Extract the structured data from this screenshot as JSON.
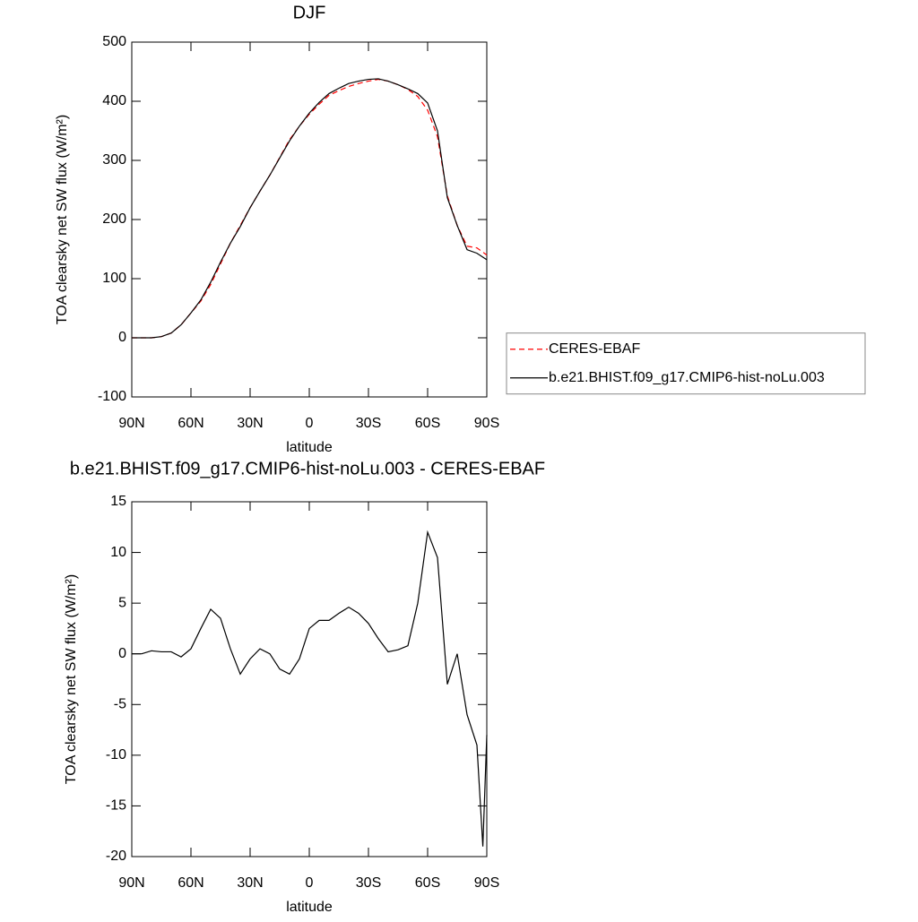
{
  "chart_data": [
    {
      "type": "line",
      "title": "DJF",
      "xlabel": "latitude",
      "ylabel": "TOA clearsky net SW flux (W/m²)",
      "x": [
        90,
        85,
        80,
        75,
        70,
        65,
        60,
        55,
        50,
        45,
        40,
        35,
        30,
        25,
        20,
        15,
        10,
        5,
        0,
        -5,
        -10,
        -15,
        -20,
        -25,
        -30,
        -35,
        -40,
        -45,
        -50,
        -55,
        -60,
        -65,
        -70,
        -75,
        -80,
        -85,
        -90
      ],
      "series": [
        {
          "name": "CERES-EBAF",
          "color": "#ff0000",
          "dashed": true,
          "values": [
            0,
            0,
            0,
            2,
            8,
            22,
            42,
            62,
            90,
            125,
            160,
            190,
            220,
            248,
            275,
            305,
            335,
            358,
            378,
            395,
            410,
            418,
            425,
            430,
            434,
            437,
            434,
            428,
            420,
            408,
            385,
            340,
            240,
            190,
            155,
            152,
            140
          ]
        },
        {
          "name": "b.e21.BHIST.f09_g17.CMIP6-hist-noLu.003",
          "color": "#000000",
          "dashed": false,
          "values": [
            0,
            0,
            0,
            2,
            8,
            22,
            42,
            64,
            94,
            128,
            160,
            188,
            220,
            248,
            275,
            304,
            333,
            358,
            380,
            398,
            413,
            422,
            430,
            434,
            437,
            438,
            434,
            428,
            421,
            413,
            397,
            350,
            237,
            190,
            149,
            143,
            132
          ]
        }
      ],
      "xlim": [
        90,
        -90
      ],
      "xticks": [
        {
          "value": 90,
          "label": "90N"
        },
        {
          "value": 60,
          "label": "60N"
        },
        {
          "value": 30,
          "label": "30N"
        },
        0,
        {
          "value": -30,
          "label": "30S"
        },
        {
          "value": -60,
          "label": "60S"
        },
        {
          "value": -90,
          "label": "90S"
        }
      ],
      "ylim": [
        -100,
        500
      ],
      "yticks": [
        -100,
        0,
        100,
        200,
        300,
        400,
        500
      ],
      "legend": "right"
    },
    {
      "type": "line",
      "title": "b.e21.BHIST.f09_g17.CMIP6-hist-noLu.003 - CERES-EBAF",
      "xlabel": "latitude",
      "ylabel": "TOA clearsky net SW flux (W/m²)",
      "x": [
        90,
        85,
        80,
        75,
        70,
        65,
        60,
        55,
        50,
        45,
        40,
        35,
        30,
        25,
        20,
        15,
        10,
        5,
        0,
        -5,
        -10,
        -15,
        -20,
        -25,
        -30,
        -35,
        -40,
        -45,
        -50,
        -55,
        -60,
        -65,
        -70,
        -75,
        -80,
        -85,
        -88,
        -90
      ],
      "values": [
        0,
        0,
        0.3,
        0.2,
        0.2,
        -0.3,
        0.5,
        2.5,
        4.4,
        3.5,
        0.5,
        -2,
        -0.5,
        0.5,
        0,
        -1.5,
        -2,
        -0.5,
        2.5,
        3.3,
        3.3,
        4,
        4.6,
        4,
        3,
        1.5,
        0.2,
        0.4,
        0.8,
        5,
        12,
        9.5,
        -3,
        0,
        -6,
        -9,
        -19,
        -8
      ],
      "color": "#000000",
      "xlim": [
        90,
        -90
      ],
      "xticks": [
        {
          "value": 90,
          "label": "90N"
        },
        {
          "value": 60,
          "label": "60N"
        },
        {
          "value": 30,
          "label": "30N"
        },
        0,
        {
          "value": -30,
          "label": "30S"
        },
        {
          "value": -60,
          "label": "60S"
        },
        {
          "value": -90,
          "label": "90S"
        }
      ],
      "ylim": [
        -20,
        15
      ],
      "yticks": [
        -20,
        -15,
        -10,
        -5,
        0,
        5,
        10,
        15
      ]
    }
  ]
}
